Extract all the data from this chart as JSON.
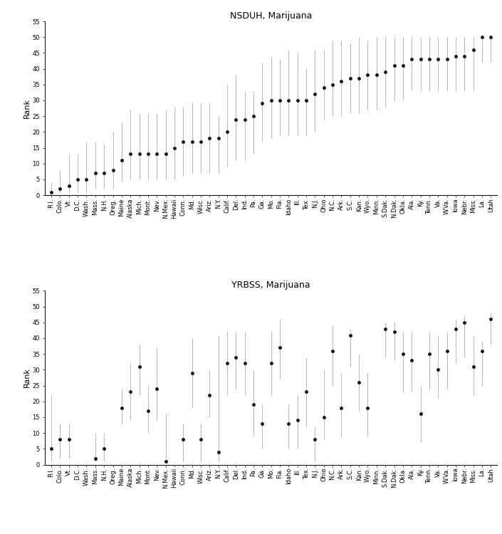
{
  "nsduh": {
    "states": [
      "R.I.",
      "Colo.",
      "Vt.",
      "D.C.",
      "Wash.",
      "Mass.",
      "N.H.",
      "Oreg.",
      "Maine",
      "Alaska",
      "Mich.",
      "Mont.",
      "Nev.",
      "N.Mex.",
      "Hawaii",
      "Conn.",
      "Md.",
      "Wisc.",
      "Ariz.",
      "N.Y.",
      "Calif.",
      "Del.",
      "Ind.",
      "Pa.",
      "Ga.",
      "Mo.",
      "Fla.",
      "Idaho",
      "Ill.",
      "Tex.",
      "N.J.",
      "Ohio",
      "N.C.",
      "Ark.",
      "S.C.",
      "Kan.",
      "Wyo.",
      "Minn.",
      "S.Dak.",
      "N.Dak.",
      "Okla.",
      "Ala.",
      "Ky.",
      "Tenn.",
      "Va.",
      "W.Va.",
      "Iowa",
      "Nebr.",
      "Miss.",
      "La.",
      "Utah"
    ],
    "median": [
      1,
      2,
      3,
      5,
      5,
      7,
      7,
      8,
      11,
      13,
      13,
      13,
      13,
      13,
      15,
      17,
      17,
      17,
      18,
      18,
      20,
      24,
      24,
      25,
      29,
      30,
      30,
      30,
      30,
      30,
      32,
      34,
      35,
      36,
      37,
      37,
      38,
      38,
      39,
      41,
      41,
      43,
      43,
      43,
      43,
      43,
      44,
      44,
      46,
      50,
      50
    ],
    "ci_low": [
      1,
      1,
      1,
      1,
      1,
      2,
      2,
      2,
      4,
      5,
      5,
      5,
      5,
      5,
      5,
      6,
      7,
      7,
      7,
      7,
      9,
      11,
      11,
      13,
      17,
      18,
      19,
      19,
      19,
      19,
      20,
      24,
      25,
      25,
      26,
      26,
      27,
      27,
      28,
      30,
      30,
      33,
      33,
      33,
      33,
      33,
      33,
      33,
      33,
      42,
      42
    ],
    "ci_high": [
      4,
      8,
      13,
      13,
      17,
      17,
      16,
      20,
      23,
      27,
      26,
      26,
      26,
      27,
      28,
      28,
      29,
      29,
      29,
      25,
      35,
      38,
      33,
      33,
      42,
      44,
      43,
      46,
      45,
      40,
      46,
      46,
      49,
      49,
      48,
      50,
      49,
      50,
      50,
      50,
      50,
      50,
      50,
      50,
      50,
      50,
      50,
      50,
      50,
      50,
      50
    ]
  },
  "yrbss": {
    "labels": [
      "R.I.",
      "Colo.",
      "Vt.",
      "D.C.",
      "Wash.",
      "Mass.",
      "N.H.",
      "Oreg.",
      "Maine",
      "Alaska",
      "Mich.",
      "Mont.",
      "Nev.",
      "N.Mex.",
      "Hawaii",
      "Conn.",
      "Md.",
      "Wisc.",
      "Ariz.",
      "N.Y.",
      "Calif.",
      "Del.",
      "Ind.",
      "Pa.",
      "Ga.",
      "Mo.",
      "Fla.",
      "Idaho",
      "Ill.",
      "Tex.",
      "N.J.",
      "Ohio",
      "N.C.",
      "Ark.",
      "S.C.",
      "Kan.",
      "Wyo.",
      "Minn.",
      "S.Dak.",
      "N.Dak.",
      "Okla.",
      "Ala.",
      "Ky.",
      "Tenn.",
      "Va.",
      "W.Va.",
      "Iowa",
      "Nebr.",
      "Miss.",
      "La.",
      "Utah"
    ],
    "median": [
      5,
      8,
      8,
      null,
      null,
      2,
      5,
      null,
      18,
      23,
      31,
      17,
      24,
      1,
      null,
      8,
      29,
      8,
      22,
      4,
      32,
      34,
      32,
      19,
      13,
      32,
      37,
      13,
      14,
      23,
      8,
      15,
      36,
      18,
      41,
      26,
      18,
      null,
      43,
      42,
      35,
      33,
      16,
      35,
      30,
      36,
      43,
      45,
      31,
      36,
      46
    ],
    "ci_low": [
      1,
      2,
      2,
      null,
      null,
      1,
      1,
      null,
      13,
      14,
      22,
      10,
      14,
      1,
      null,
      1,
      18,
      1,
      15,
      1,
      22,
      24,
      22,
      9,
      5,
      22,
      27,
      5,
      5,
      12,
      1,
      8,
      25,
      9,
      31,
      17,
      9,
      null,
      34,
      33,
      23,
      23,
      7,
      24,
      21,
      24,
      32,
      34,
      22,
      25,
      38
    ],
    "ci_high": [
      22,
      13,
      13,
      null,
      null,
      10,
      10,
      null,
      24,
      32,
      38,
      25,
      37,
      16,
      null,
      13,
      40,
      13,
      30,
      41,
      42,
      42,
      42,
      30,
      19,
      42,
      46,
      19,
      22,
      34,
      12,
      30,
      44,
      29,
      43,
      35,
      29,
      null,
      45,
      45,
      42,
      42,
      25,
      42,
      41,
      42,
      46,
      47,
      41,
      39,
      48
    ]
  },
  "ylim": [
    0,
    55
  ],
  "yticks": [
    0,
    5,
    10,
    15,
    20,
    25,
    30,
    35,
    40,
    45,
    50,
    55
  ],
  "marker_color": "#111111",
  "ci_color": "#bbbbbb",
  "marker_size": 3.5,
  "elinewidth": 0.8,
  "title_nsduh": "NSDUH, Marijuana",
  "title_yrbss": "YRBSS, Marijuana",
  "ylabel": "Rank",
  "tick_fontsize": 6,
  "ylabel_fontsize": 8,
  "title_fontsize": 9
}
